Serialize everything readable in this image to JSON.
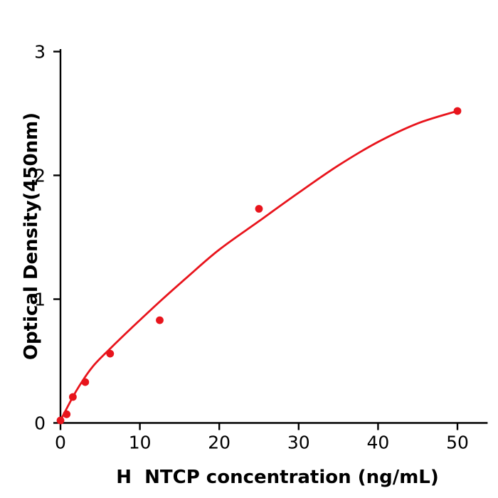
{
  "chart_data": {
    "type": "scatter",
    "title": "",
    "xlabel": "H  NTCP concentration (ng/mL)",
    "ylabel": "Optical Density(450nm)",
    "xlim": [
      0,
      53.8
    ],
    "ylim": [
      0,
      3.02
    ],
    "x_ticks": [
      0,
      10,
      20,
      30,
      40,
      50
    ],
    "y_ticks": [
      0,
      1,
      2,
      3
    ],
    "grid": false,
    "legend_position": "none",
    "series": [
      {
        "name": "standard-data-points",
        "type": "scatter",
        "color": "#e8141c",
        "points": [
          [
            0,
            0.02
          ],
          [
            0.78,
            0.07
          ],
          [
            1.56,
            0.21
          ],
          [
            3.12,
            0.33
          ],
          [
            6.25,
            0.56
          ],
          [
            12.5,
            0.83
          ],
          [
            25,
            1.73
          ],
          [
            50,
            2.52
          ]
        ]
      },
      {
        "name": "fitted-curve",
        "type": "line",
        "color": "#e8141c",
        "points": [
          [
            0,
            0.02
          ],
          [
            2,
            0.26
          ],
          [
            4,
            0.45
          ],
          [
            6.25,
            0.6
          ],
          [
            9,
            0.77
          ],
          [
            12.5,
            0.98
          ],
          [
            16,
            1.18
          ],
          [
            20,
            1.4
          ],
          [
            25,
            1.63
          ],
          [
            30,
            1.86
          ],
          [
            35,
            2.08
          ],
          [
            40,
            2.27
          ],
          [
            45,
            2.42
          ],
          [
            50,
            2.52
          ]
        ]
      }
    ],
    "axis_color": "#000000",
    "tick_label_color": "#000000",
    "background_color": "#ffffff"
  }
}
